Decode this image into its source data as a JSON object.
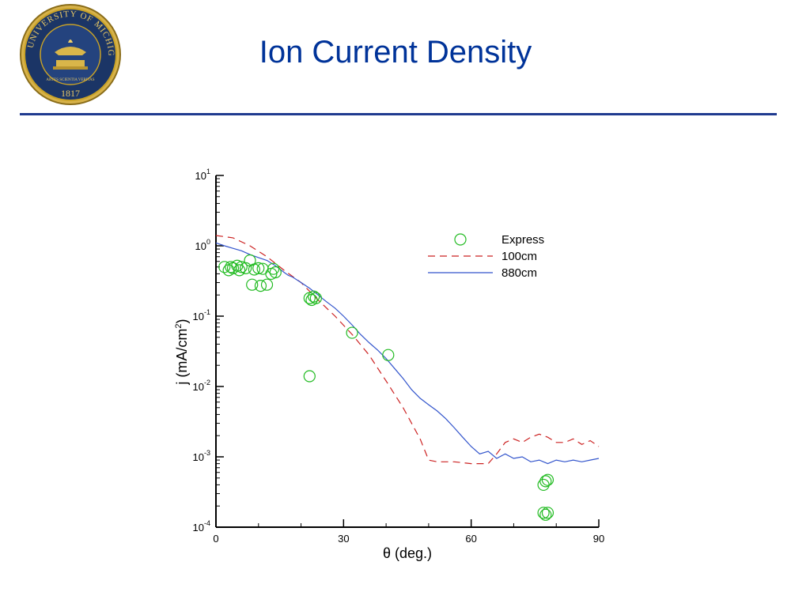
{
  "slide": {
    "title": "Ion Current Density",
    "seal": {
      "top_text": "THE UNIVERSITY OF MICHIGAN",
      "inner_text": "ARTES SCIENTIA VERITAS",
      "year": "1817"
    }
  },
  "colors": {
    "title": "#003399",
    "rule": "#1f3a8f",
    "express": "#22bb22",
    "line_100cm": "#cc2222",
    "line_880cm": "#3355cc",
    "seal_navy": "#1b3566",
    "seal_gold": "#c9a227"
  },
  "chart_data": {
    "type": "scatter",
    "xlabel": "θ (deg.)",
    "ylabel_main": "j (mA/cm",
    "ylabel_sup": "2",
    "ylabel_close": ")",
    "xlim": [
      0,
      90
    ],
    "ylim": [
      0.0001,
      10
    ],
    "yscale": "log",
    "x_ticks": [
      {
        "value": 0,
        "label": "0"
      },
      {
        "value": 30,
        "label": "30"
      },
      {
        "value": 60,
        "label": "60"
      },
      {
        "value": 90,
        "label": "90"
      }
    ],
    "y_ticks": [
      {
        "value": 10,
        "base": "10",
        "exp": "1"
      },
      {
        "value": 1,
        "base": "10",
        "exp": "0"
      },
      {
        "value": 0.1,
        "base": "10",
        "exp": "-1"
      },
      {
        "value": 0.01,
        "base": "10",
        "exp": "-2"
      },
      {
        "value": 0.001,
        "base": "10",
        "exp": "-3"
      },
      {
        "value": 0.0001,
        "base": "10",
        "exp": "-4"
      }
    ],
    "grid": false,
    "legend_position": "top-right",
    "series": [
      {
        "name": "Express",
        "style": "markers",
        "x": [
          2,
          3,
          3.5,
          4,
          5,
          5.5,
          6,
          7,
          8,
          8.5,
          9,
          10,
          10.5,
          11,
          12,
          13,
          13.5,
          14,
          22,
          22.5,
          23,
          23.5,
          22,
          32,
          40.5,
          77,
          77.5,
          78,
          77,
          77.5,
          78
        ],
        "y": [
          0.5,
          0.45,
          0.5,
          0.48,
          0.52,
          0.45,
          0.5,
          0.48,
          0.62,
          0.28,
          0.46,
          0.48,
          0.27,
          0.47,
          0.28,
          0.4,
          0.47,
          0.42,
          0.18,
          0.17,
          0.19,
          0.18,
          0.014,
          0.058,
          0.028,
          0.0004,
          0.00045,
          0.00047,
          0.00016,
          0.00015,
          0.00016
        ]
      },
      {
        "name": "100cm",
        "style": "dashed-line",
        "x": [
          0,
          4,
          8,
          12,
          16,
          20,
          24,
          28,
          32,
          36,
          40,
          44,
          48,
          50,
          52,
          56,
          60,
          64,
          66,
          68,
          70,
          72,
          74,
          76,
          78,
          80,
          82,
          84,
          86,
          88,
          90
        ],
        "y": [
          1.4,
          1.3,
          1.0,
          0.7,
          0.45,
          0.3,
          0.17,
          0.1,
          0.055,
          0.028,
          0.012,
          0.005,
          0.0018,
          0.0009,
          0.00085,
          0.00085,
          0.0008,
          0.0008,
          0.0011,
          0.0016,
          0.0018,
          0.0016,
          0.0019,
          0.0021,
          0.0019,
          0.0016,
          0.0016,
          0.0018,
          0.0015,
          0.0017,
          0.0014
        ]
      },
      {
        "name": "880cm",
        "style": "solid-line",
        "x": [
          0,
          2,
          4,
          6,
          8,
          10,
          12,
          14,
          16,
          17,
          18,
          20,
          22,
          24,
          26,
          28,
          30,
          32,
          34,
          36,
          38,
          40,
          42,
          44,
          46,
          48,
          50,
          52,
          54,
          56,
          58,
          60,
          62,
          64,
          66,
          68,
          70,
          72,
          74,
          76,
          78,
          80,
          82,
          84,
          86,
          88,
          90
        ],
        "y": [
          1.1,
          1.0,
          0.92,
          0.85,
          0.75,
          0.68,
          0.62,
          0.52,
          0.42,
          0.38,
          0.36,
          0.3,
          0.25,
          0.2,
          0.16,
          0.13,
          0.1,
          0.075,
          0.055,
          0.042,
          0.033,
          0.025,
          0.018,
          0.013,
          0.009,
          0.0068,
          0.0055,
          0.0045,
          0.0035,
          0.0026,
          0.0019,
          0.0014,
          0.0011,
          0.0012,
          0.00095,
          0.0011,
          0.00095,
          0.001,
          0.00085,
          0.0009,
          0.0008,
          0.0009,
          0.00085,
          0.0009,
          0.00085,
          0.0009,
          0.00095
        ]
      }
    ]
  }
}
